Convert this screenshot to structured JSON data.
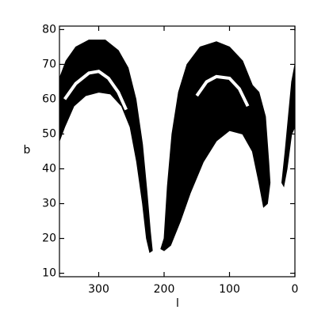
{
  "chart_data": {
    "type": "region",
    "x_label": "l",
    "y_label": "b",
    "xlim": [
      360,
      0
    ],
    "xticks": [
      300,
      200,
      100,
      0
    ],
    "ylim": [
      9,
      81
    ],
    "yticks": [
      10,
      20,
      30,
      40,
      50,
      60,
      70,
      80
    ],
    "series": [
      {
        "color": "#000000",
        "fill": true,
        "x": [
          360,
          360,
          350,
          335,
          315,
          290,
          270,
          255,
          243,
          233,
          226,
          221,
          218,
          222,
          227,
          233,
          242,
          252,
          265,
          282,
          300,
          320,
          338,
          352,
          360
        ],
        "y": [
          46,
          66,
          71,
          75,
          77,
          77,
          74,
          69,
          60,
          47,
          33,
          22,
          16.5,
          16,
          20,
          30,
          42,
          52,
          58,
          61.5,
          62,
          61,
          58,
          52,
          48
        ]
      },
      {
        "color": "#000000",
        "fill": true,
        "x": [
          205,
          200,
          195,
          188,
          178,
          165,
          145,
          120,
          100,
          80,
          65,
          55,
          45,
          40,
          38,
          42,
          48,
          55,
          65,
          80,
          100,
          120,
          140,
          160,
          175,
          190,
          200
        ],
        "y": [
          17,
          20,
          35,
          50,
          62,
          70,
          75,
          76.5,
          75,
          71,
          64,
          62,
          55,
          42,
          36,
          30,
          29,
          36,
          45,
          50,
          51,
          48,
          42,
          33,
          25,
          18,
          16.5
        ]
      },
      {
        "color": "#000000",
        "fill": true,
        "x": [
          0,
          5,
          10,
          15,
          20,
          17,
          12,
          5,
          0
        ],
        "y": [
          70,
          65,
          55,
          45,
          36,
          35,
          40,
          50,
          52
        ]
      },
      {
        "color": "#ffffff",
        "fill": false,
        "x": [
          352,
          335,
          315,
          300,
          285,
          270,
          258
        ],
        "y": [
          60,
          64.5,
          67.5,
          68,
          66,
          62,
          57
        ]
      },
      {
        "color": "#ffffff",
        "fill": false,
        "x": [
          150,
          135,
          120,
          100,
          85,
          72
        ],
        "y": [
          61,
          65,
          66.5,
          66,
          63,
          58
        ]
      }
    ]
  }
}
